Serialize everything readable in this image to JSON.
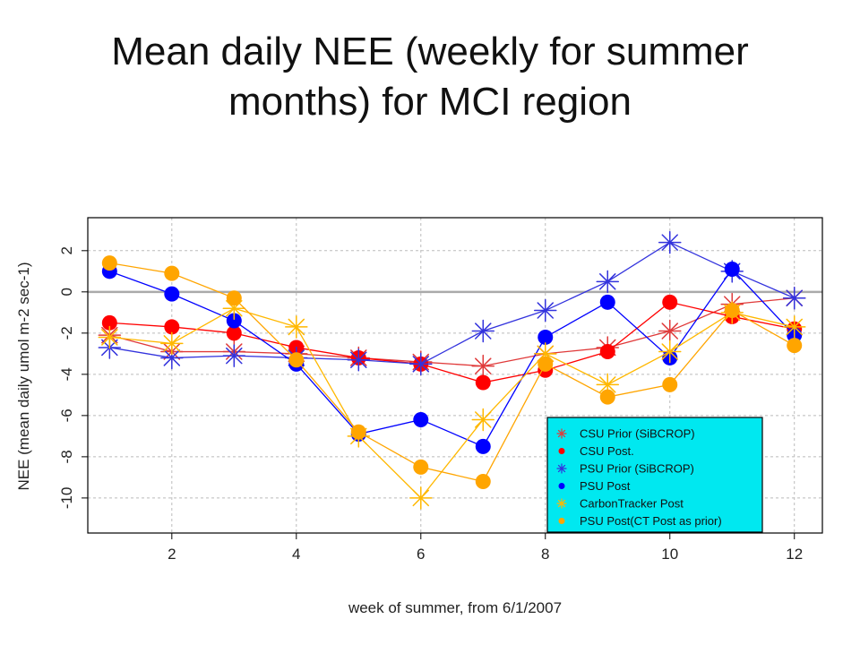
{
  "slide": {
    "title_line1": "Mean daily NEE (weekly for summer",
    "title_line2": "months) for MCI region"
  },
  "chart_data": {
    "type": "line",
    "title": "",
    "xlabel": "week of summer, from 6/1/2007",
    "ylabel": "NEE (mean daily umol m-2 sec-1)",
    "xlim": [
      0.65,
      12.45
    ],
    "ylim": [
      -11.7,
      3.6
    ],
    "xticks": [
      2,
      4,
      6,
      8,
      10,
      12
    ],
    "yticks": [
      2,
      0,
      -2,
      -4,
      -6,
      -8,
      -10
    ],
    "zero_line": true,
    "grid": true,
    "legend_position": "bottom-right",
    "x": [
      1,
      2,
      3,
      4,
      5,
      6,
      7,
      8,
      9,
      10,
      11,
      12
    ],
    "series": [
      {
        "name": "CSU Prior (SiBCROP)",
        "color": "#e03a3a",
        "marker": "star",
        "values": [
          -2.1,
          -2.9,
          -2.9,
          -3.0,
          -3.2,
          -3.4,
          -3.6,
          -3.0,
          -2.7,
          -1.9,
          -0.6,
          -0.3
        ]
      },
      {
        "name": "CSU Post.",
        "color": "#ff0000",
        "marker": "dot",
        "values": [
          -1.5,
          -1.7,
          -2.0,
          -2.7,
          -3.2,
          -3.5,
          -4.4,
          -3.8,
          -2.9,
          -0.5,
          -1.2,
          -1.8
        ]
      },
      {
        "name": "PSU Prior (SiBCROP)",
        "color": "#3333dd",
        "marker": "star",
        "values": [
          -2.7,
          -3.2,
          -3.1,
          -3.2,
          -3.3,
          -3.5,
          -1.9,
          -0.9,
          0.5,
          2.4,
          1.0,
          -0.3
        ]
      },
      {
        "name": "PSU Post",
        "color": "#0000ff",
        "marker": "dot",
        "values": [
          1.0,
          -0.1,
          -1.4,
          -3.5,
          -6.9,
          -6.2,
          -7.5,
          -2.2,
          -0.5,
          -3.2,
          1.1,
          -2.1
        ]
      },
      {
        "name": "CarbonTracker Post",
        "color": "#ffb800",
        "marker": "star",
        "values": [
          -2.2,
          -2.5,
          -0.8,
          -1.7,
          -7.0,
          -10.0,
          -6.2,
          -3.0,
          -4.5,
          -2.9,
          -1.0,
          -1.7
        ]
      },
      {
        "name": "PSU Post(CT Post as prior)",
        "color": "#ffa500",
        "marker": "dot",
        "values": [
          1.4,
          0.9,
          -0.3,
          -3.3,
          -6.8,
          -8.5,
          -9.2,
          -3.5,
          -5.1,
          -4.5,
          -0.9,
          -2.6
        ]
      }
    ]
  },
  "colors": {
    "legend_background": "#00e8f0",
    "plot_border": "#000000",
    "gridline": "#bbbbbb",
    "zero_line": "#aaaaaa"
  }
}
